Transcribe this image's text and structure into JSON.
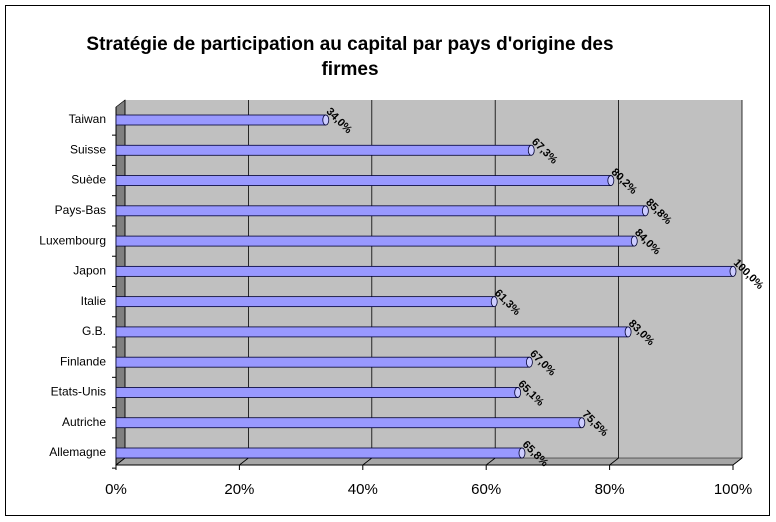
{
  "chart_data": {
    "type": "bar",
    "orientation": "horizontal",
    "title": "Stratégie de participation au capital par pays d'origine des firmes",
    "categories": [
      "Taiwan",
      "Suisse",
      "Suède",
      "Pays-Bas",
      "Luxembourg",
      "Japon",
      "Italie",
      "G.B.",
      "Finlande",
      "Etats-Unis",
      "Autriche",
      "Allemagne"
    ],
    "values": [
      34.0,
      67.3,
      80.2,
      85.8,
      84.0,
      100.0,
      61.3,
      83.0,
      67.0,
      65.1,
      75.5,
      65.8
    ],
    "value_labels": [
      "34,0%",
      "67,3%",
      "80,2%",
      "85,8%",
      "84,0%",
      "100,0%",
      "61,3%",
      "83,0%",
      "67,0%",
      "65,1%",
      "75,5%",
      "65,8%"
    ],
    "color": "#9999ff",
    "xlim": [
      0,
      100
    ],
    "xticks": [
      {
        "value": 0,
        "label": "0%"
      },
      {
        "value": 20,
        "label": "20%"
      },
      {
        "value": 40,
        "label": "40%"
      },
      {
        "value": 60,
        "label": "60%"
      },
      {
        "value": 80,
        "label": "80%"
      },
      {
        "value": 100,
        "label": "100%"
      }
    ],
    "grid": true
  }
}
